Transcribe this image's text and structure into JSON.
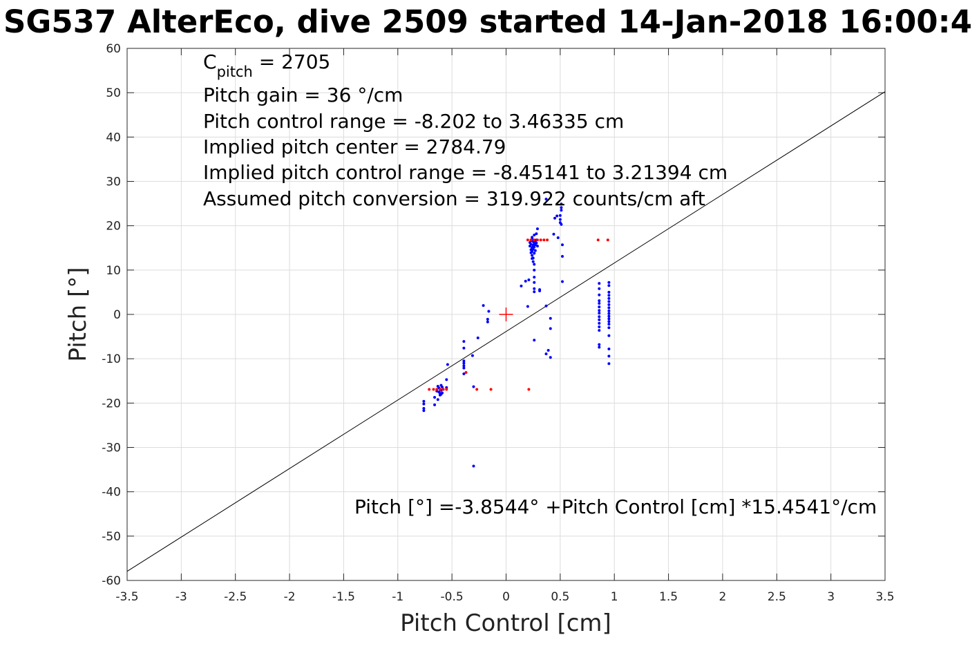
{
  "chart_data": {
    "type": "scatter",
    "title": "SG537 AlterEco, dive 2509 started 14-Jan-2018 16:00:4",
    "xlabel": "Pitch Control [cm]",
    "ylabel": "Pitch [°]",
    "xlim": [
      -3.5,
      3.5
    ],
    "ylim": [
      -60,
      60
    ],
    "grid": true,
    "x_ticks": [
      "-3.5",
      "-3",
      "-2.5",
      "-2",
      "-1.5",
      "-1",
      "-0.5",
      "0",
      "0.5",
      "1",
      "1.5",
      "2",
      "2.5",
      "3",
      "3.5"
    ],
    "y_ticks": [
      "60",
      "50",
      "40",
      "30",
      "20",
      "10",
      "0",
      "-10",
      "-20",
      "-30",
      "-40",
      "-50",
      "-60"
    ],
    "annotations": {
      "cpitch_base": "C",
      "cpitch_sub": "pitch",
      "cpitch_value": " = 2705",
      "pitch_gain": "Pitch gain = 36 °/cm",
      "control_range": "Pitch control range = -8.202 to 3.46335 cm",
      "implied_center": "Implied pitch center = 2784.79",
      "implied_range": "Implied pitch control range = -8.45141 to 3.21394 cm",
      "conversion": "Assumed pitch conversion = 319.922 counts/cm aft",
      "fit_equation": "Pitch [°] =-3.8544° +Pitch Control [cm] *15.4541°/cm"
    },
    "fit_line": {
      "intercept": -3.8544,
      "slope": 15.4541,
      "x_range": [
        -3.5,
        3.5
      ]
    },
    "center_marker": {
      "x": 0,
      "y": 0,
      "color": "#ff0000"
    },
    "series": [
      {
        "color": "#0000ff",
        "points": [
          [
            -0.76,
            -19.6
          ],
          [
            -0.76,
            -20.2
          ],
          [
            -0.76,
            -21.2
          ],
          [
            -0.76,
            -21.7
          ],
          [
            -0.66,
            -18.7
          ],
          [
            -0.66,
            -20.4
          ],
          [
            -0.63,
            -19.2
          ],
          [
            -0.64,
            -17.3
          ],
          [
            -0.63,
            -16.2
          ],
          [
            -0.62,
            -16.6
          ],
          [
            -0.62,
            -17.5
          ],
          [
            -0.61,
            -18.2
          ],
          [
            -0.61,
            -17.8
          ],
          [
            -0.6,
            -16.0
          ],
          [
            -0.6,
            -17.1
          ],
          [
            -0.59,
            -16.4
          ],
          [
            -0.59,
            -17.7
          ],
          [
            -0.6,
            -18.0
          ],
          [
            -0.61,
            -16.9
          ],
          [
            -0.55,
            -14.7
          ],
          [
            -0.54,
            -11.3
          ],
          [
            -0.55,
            -16.5
          ],
          [
            -0.39,
            -6.1
          ],
          [
            -0.39,
            -7.6
          ],
          [
            -0.39,
            -10.5
          ],
          [
            -0.39,
            -11.0
          ],
          [
            -0.39,
            -11.6
          ],
          [
            -0.39,
            -12.1
          ],
          [
            -0.39,
            -13.4
          ],
          [
            -0.31,
            -9.3
          ],
          [
            -0.3,
            -16.3
          ],
          [
            -0.3,
            -34.2
          ],
          [
            -0.26,
            -5.3
          ],
          [
            -0.21,
            2.0
          ],
          [
            -0.17,
            -1.1
          ],
          [
            -0.17,
            -1.7
          ],
          [
            -0.16,
            0.7
          ],
          [
            0.14,
            6.4
          ],
          [
            0.18,
            7.5
          ],
          [
            0.2,
            1.8
          ],
          [
            0.21,
            7.8
          ],
          [
            0.22,
            15.4
          ],
          [
            0.22,
            16.2
          ],
          [
            0.23,
            14.6
          ],
          [
            0.23,
            15.8
          ],
          [
            0.23,
            16.6
          ],
          [
            0.23,
            13.9
          ],
          [
            0.24,
            12.6
          ],
          [
            0.24,
            13.3
          ],
          [
            0.24,
            14.2
          ],
          [
            0.24,
            15.1
          ],
          [
            0.24,
            16.9
          ],
          [
            0.24,
            17.4
          ],
          [
            0.25,
            11.9
          ],
          [
            0.25,
            12.7
          ],
          [
            0.25,
            14.7
          ],
          [
            0.25,
            15.6
          ],
          [
            0.25,
            16.4
          ],
          [
            0.26,
            5.1
          ],
          [
            0.26,
            5.8
          ],
          [
            0.26,
            7.2
          ],
          [
            0.26,
            8.4
          ],
          [
            0.26,
            10.0
          ],
          [
            0.26,
            11.3
          ],
          [
            0.26,
            13.8
          ],
          [
            0.26,
            15.2
          ],
          [
            0.26,
            16.0
          ],
          [
            0.26,
            17.9
          ],
          [
            0.27,
            14.4
          ],
          [
            0.27,
            15.7
          ],
          [
            0.27,
            16.6
          ],
          [
            0.26,
            -5.8
          ],
          [
            0.28,
            16.1
          ],
          [
            0.28,
            16.8
          ],
          [
            0.28,
            18.2
          ],
          [
            0.29,
            19.3
          ],
          [
            0.29,
            15.4
          ],
          [
            0.31,
            5.3
          ],
          [
            0.31,
            5.6
          ],
          [
            0.37,
            26.0
          ],
          [
            0.37,
            1.9
          ],
          [
            0.37,
            -8.9
          ],
          [
            0.39,
            -8.1
          ],
          [
            0.41,
            -0.9
          ],
          [
            0.41,
            -3.2
          ],
          [
            0.41,
            -9.7
          ],
          [
            0.44,
            18.1
          ],
          [
            0.45,
            21.7
          ],
          [
            0.47,
            22.2
          ],
          [
            0.48,
            17.3
          ],
          [
            0.5,
            20.7
          ],
          [
            0.5,
            21.4
          ],
          [
            0.5,
            22.3
          ],
          [
            0.51,
            23.5
          ],
          [
            0.51,
            24.1
          ],
          [
            0.51,
            24.9
          ],
          [
            0.51,
            20.3
          ],
          [
            0.52,
            15.7
          ],
          [
            0.52,
            13.1
          ],
          [
            0.52,
            7.4
          ],
          [
            0.86,
            7.0
          ],
          [
            0.86,
            5.8
          ],
          [
            0.86,
            4.4
          ],
          [
            0.86,
            3.1
          ],
          [
            0.86,
            2.5
          ],
          [
            0.86,
            1.7
          ],
          [
            0.86,
            0.9
          ],
          [
            0.86,
            0.3
          ],
          [
            0.86,
            -0.5
          ],
          [
            0.86,
            -1.2
          ],
          [
            0.86,
            -2.0
          ],
          [
            0.86,
            -2.8
          ],
          [
            0.86,
            -3.6
          ],
          [
            0.86,
            -6.8
          ],
          [
            0.86,
            -7.4
          ],
          [
            0.95,
            7.2
          ],
          [
            0.95,
            6.5
          ],
          [
            0.95,
            5.0
          ],
          [
            0.95,
            4.3
          ],
          [
            0.95,
            3.6
          ],
          [
            0.95,
            2.9
          ],
          [
            0.95,
            2.2
          ],
          [
            0.95,
            1.5
          ],
          [
            0.95,
            0.8
          ],
          [
            0.95,
            0.2
          ],
          [
            0.95,
            -0.4
          ],
          [
            0.95,
            -1.0
          ],
          [
            0.95,
            -1.6
          ],
          [
            0.95,
            -2.2
          ],
          [
            0.95,
            -3.0
          ],
          [
            0.95,
            -4.8
          ],
          [
            0.95,
            -7.8
          ],
          [
            0.95,
            -9.4
          ],
          [
            0.95,
            -11.1
          ]
        ]
      },
      {
        "color": "#ff0000",
        "points": [
          [
            -0.71,
            -16.9
          ],
          [
            -0.67,
            -16.9
          ],
          [
            -0.64,
            -16.9
          ],
          [
            -0.61,
            -16.9
          ],
          [
            -0.58,
            -16.9
          ],
          [
            -0.55,
            -16.9
          ],
          [
            -0.37,
            -13.1
          ],
          [
            -0.27,
            -16.9
          ],
          [
            -0.14,
            -16.9
          ],
          [
            0.21,
            -16.9
          ],
          [
            0.2,
            16.8
          ],
          [
            0.23,
            16.8
          ],
          [
            0.26,
            16.8
          ],
          [
            0.29,
            16.8
          ],
          [
            0.32,
            16.8
          ],
          [
            0.35,
            16.8
          ],
          [
            0.38,
            16.8
          ],
          [
            0.85,
            16.8
          ],
          [
            0.94,
            16.8
          ]
        ]
      }
    ]
  }
}
